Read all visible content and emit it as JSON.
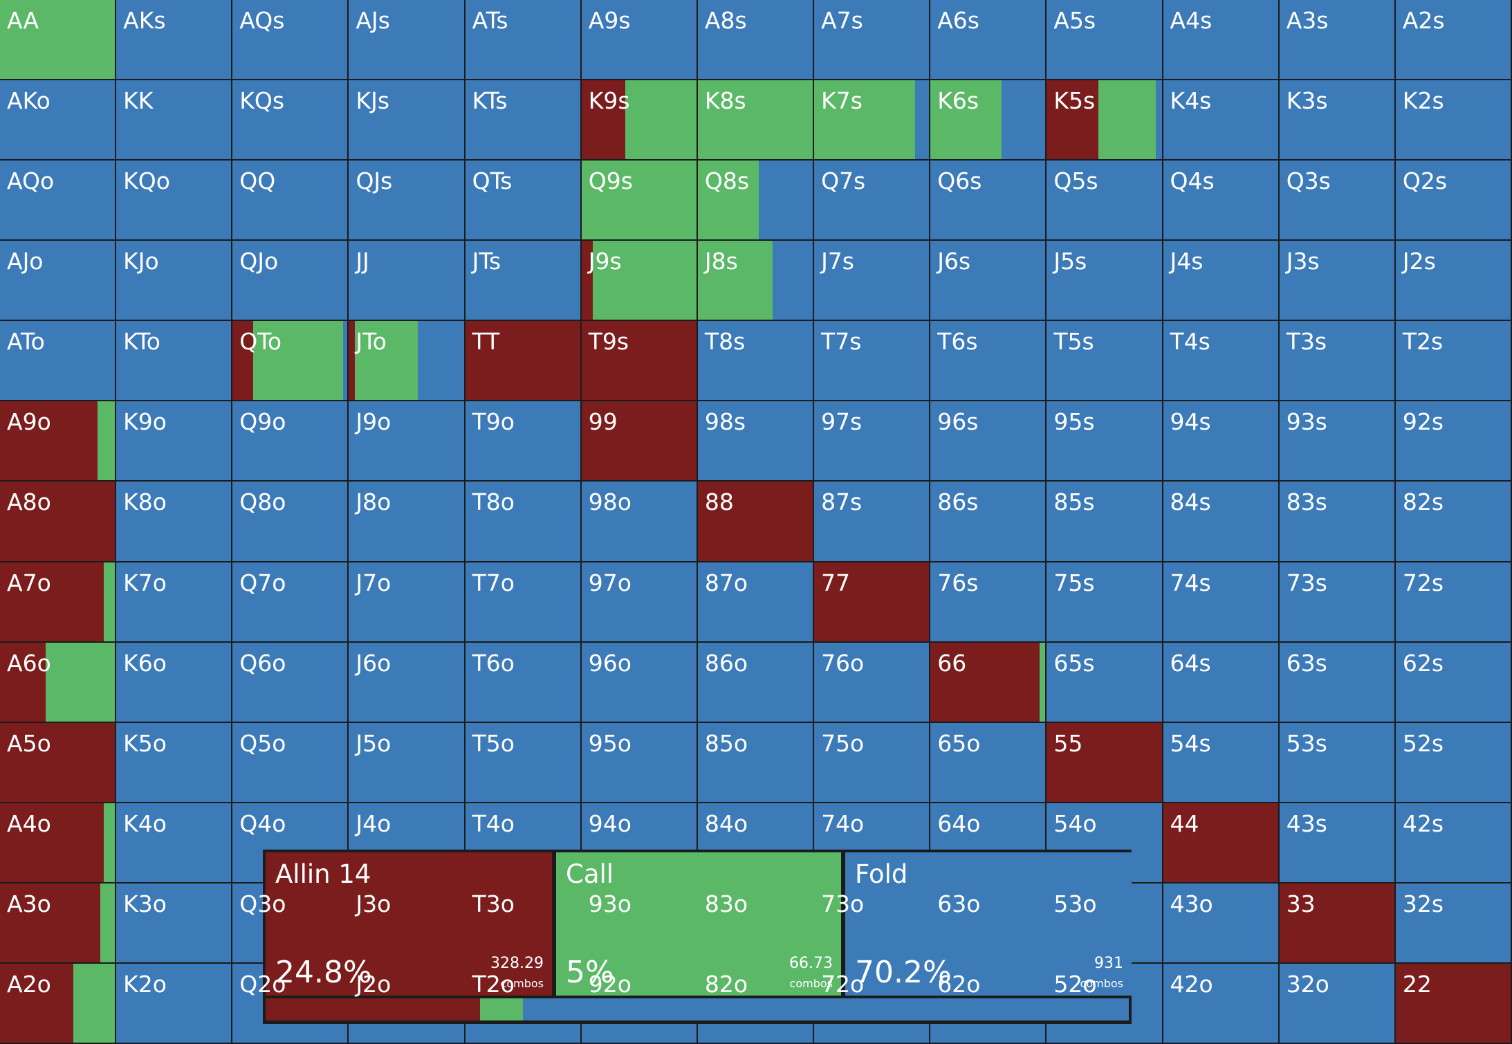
{
  "colors": {
    "allin": "#7b1d1d",
    "call": "#5bb866",
    "fold": "#3c7ab8"
  },
  "range": {
    "ranks": [
      "A",
      "K",
      "Q",
      "J",
      "T",
      "9",
      "8",
      "7",
      "6",
      "5",
      "4",
      "3",
      "2"
    ],
    "overrides": {
      "AA": {
        "call": 1.0
      },
      "K9s": {
        "allin": 0.38,
        "call": 0.62
      },
      "K8s": {
        "call": 1.0
      },
      "K7s": {
        "call": 0.88,
        "fold": 0.12
      },
      "K6s": {
        "call": 0.62,
        "fold": 0.38
      },
      "K5s": {
        "allin": 0.45,
        "call": 0.5,
        "fold": 0.05
      },
      "Q9s": {
        "call": 1.0
      },
      "Q8s": {
        "call": 0.53,
        "fold": 0.47
      },
      "J9s": {
        "allin": 0.1,
        "call": 0.9
      },
      "J8s": {
        "call": 0.65,
        "fold": 0.35
      },
      "QTo": {
        "allin": 0.18,
        "call": 0.78,
        "fold": 0.04
      },
      "JTo": {
        "allin": 0.05,
        "call": 0.55,
        "fold": 0.4
      },
      "TT": {
        "allin": 1.0
      },
      "T9s": {
        "allin": 1.0
      },
      "A9o": {
        "allin": 0.85,
        "call": 0.15
      },
      "99": {
        "allin": 1.0
      },
      "A8o": {
        "allin": 1.0
      },
      "88": {
        "allin": 1.0
      },
      "A7o": {
        "allin": 0.9,
        "call": 0.1
      },
      "77": {
        "allin": 1.0
      },
      "A6o": {
        "allin": 0.4,
        "call": 0.6
      },
      "66": {
        "allin": 0.95,
        "call": 0.05
      },
      "A5o": {
        "allin": 1.0
      },
      "55": {
        "allin": 1.0
      },
      "A4o": {
        "allin": 0.9,
        "call": 0.1
      },
      "44": {
        "allin": 1.0
      },
      "A3o": {
        "allin": 0.87,
        "call": 0.13
      },
      "33": {
        "allin": 1.0
      },
      "A2o": {
        "allin": 0.64,
        "call": 0.36
      },
      "22": {
        "allin": 1.0
      }
    }
  },
  "legend": {
    "allin": {
      "label": "Allin 14",
      "pct": "24.8%",
      "combos": "328.29",
      "unit": "combos",
      "share": 0.248
    },
    "call": {
      "label": "Call",
      "pct": "5%",
      "combos": "66.73",
      "unit": "combos",
      "share": 0.05
    },
    "fold": {
      "label": "Fold",
      "pct": "70.2%",
      "combos": "931",
      "unit": "combos",
      "share": 0.702
    }
  }
}
